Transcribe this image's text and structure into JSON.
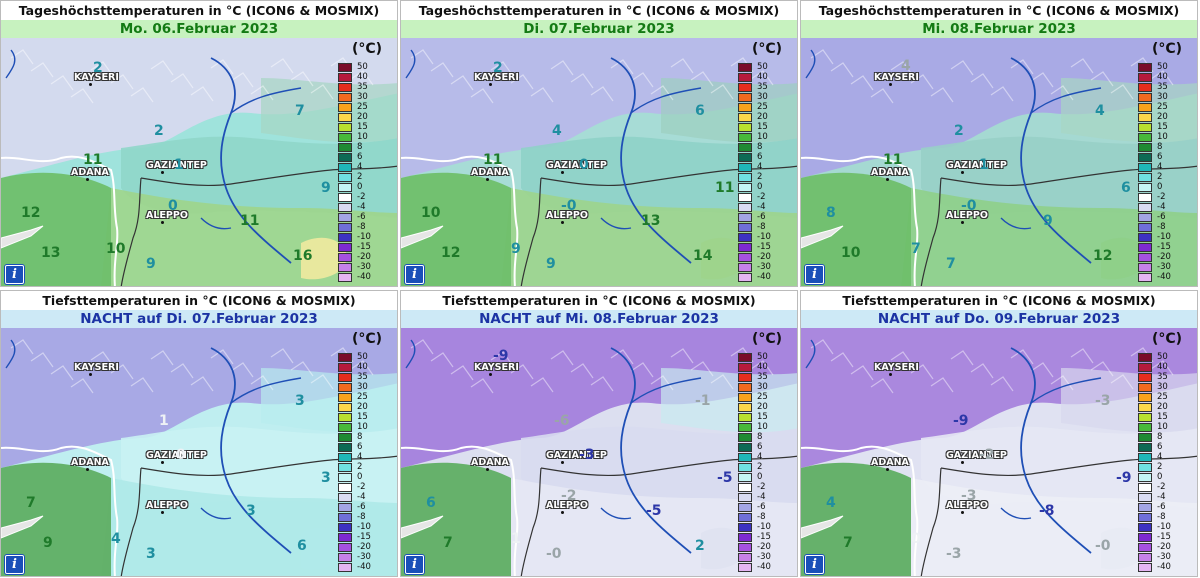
{
  "unit": "(°C)",
  "scale": {
    "labels": [
      "50",
      "40",
      "35",
      "30",
      "25",
      "20",
      "15",
      "10",
      "8",
      "6",
      "4",
      "2",
      "0",
      "-2",
      "-4",
      "-6",
      "-8",
      "-10",
      "-15",
      "-20",
      "-30",
      "-40"
    ],
    "colors": [
      "#7a0b2a",
      "#b51a3c",
      "#e62d1d",
      "#f26a1f",
      "#f9a21c",
      "#fbd74a",
      "#b9e02f",
      "#47b93a",
      "#1f8a33",
      "#0d6a55",
      "#1fb6b8",
      "#6fe0e2",
      "#c4f5f5",
      "#ffffff",
      "#d9dbf2",
      "#a3a5e4",
      "#6f6fd9",
      "#3d32c2",
      "#7d2ad1",
      "#a551df",
      "#c681e8",
      "#e4b5f2"
    ]
  },
  "cities": {
    "kayseri": "KAYSERI",
    "adana": "ADANA",
    "gaziantep": "GAZIANTEP",
    "aleppo": "ALEPPO"
  },
  "info_label": "i",
  "panels": [
    {
      "title": "Tageshöchsttemperaturen in °C (ICON6 & MOSMIX)",
      "date": "Mo. 06.Februar 2023",
      "kind": "day",
      "values": [
        {
          "t": "2",
          "c": "cy",
          "x": 92,
          "y": 30
        },
        {
          "t": "2",
          "c": "cy",
          "x": 153,
          "y": 93
        },
        {
          "t": "7",
          "c": "cy",
          "x": 294,
          "y": 73
        },
        {
          "t": "11",
          "c": "dg",
          "x": 82,
          "y": 122
        },
        {
          "t": "1",
          "c": "cy",
          "x": 173,
          "y": 127
        },
        {
          "t": "9",
          "c": "cy",
          "x": 320,
          "y": 150
        },
        {
          "t": "12",
          "c": "dg",
          "x": 20,
          "y": 175
        },
        {
          "t": "0",
          "c": "cy",
          "x": 167,
          "y": 168
        },
        {
          "t": "11",
          "c": "dg",
          "x": 239,
          "y": 183
        },
        {
          "t": "13",
          "c": "dg",
          "x": 40,
          "y": 215
        },
        {
          "t": "10",
          "c": "dg",
          "x": 105,
          "y": 211
        },
        {
          "t": "9",
          "c": "cy",
          "x": 145,
          "y": 226
        },
        {
          "t": "16",
          "c": "dg",
          "x": 292,
          "y": 218
        }
      ]
    },
    {
      "title": "Tageshöchsttemperaturen in °C (ICON6 & MOSMIX)",
      "date": "Di. 07.Februar 2023",
      "kind": "day",
      "values": [
        {
          "t": "2",
          "c": "cy",
          "x": 92,
          "y": 30
        },
        {
          "t": "4",
          "c": "cy",
          "x": 151,
          "y": 93
        },
        {
          "t": "6",
          "c": "cy",
          "x": 294,
          "y": 73
        },
        {
          "t": "11",
          "c": "dg",
          "x": 82,
          "y": 122
        },
        {
          "t": "0",
          "c": "cy",
          "x": 178,
          "y": 127
        },
        {
          "t": "11",
          "c": "dg",
          "x": 314,
          "y": 150
        },
        {
          "t": "10",
          "c": "dg",
          "x": 20,
          "y": 175
        },
        {
          "t": "-0",
          "c": "cy",
          "x": 160,
          "y": 168
        },
        {
          "t": "13",
          "c": "dg",
          "x": 240,
          "y": 183
        },
        {
          "t": "12",
          "c": "dg",
          "x": 40,
          "y": 215
        },
        {
          "t": "9",
          "c": "cy",
          "x": 110,
          "y": 211
        },
        {
          "t": "9",
          "c": "cy",
          "x": 145,
          "y": 226
        },
        {
          "t": "14",
          "c": "dg",
          "x": 292,
          "y": 218
        }
      ]
    },
    {
      "title": "Tageshöchsttemperaturen in °C (ICON6 & MOSMIX)",
      "date": "Mi. 08.Februar 2023",
      "kind": "day",
      "values": [
        {
          "t": "4",
          "c": "gr",
          "x": 100,
          "y": 28
        },
        {
          "t": "2",
          "c": "cy",
          "x": 153,
          "y": 93
        },
        {
          "t": "4",
          "c": "cy",
          "x": 294,
          "y": 73
        },
        {
          "t": "11",
          "c": "dg",
          "x": 82,
          "y": 122
        },
        {
          "t": "1",
          "c": "cy",
          "x": 178,
          "y": 127
        },
        {
          "t": "6",
          "c": "cy",
          "x": 320,
          "y": 150
        },
        {
          "t": "8",
          "c": "cy",
          "x": 25,
          "y": 175
        },
        {
          "t": "-0",
          "c": "cy",
          "x": 160,
          "y": 168
        },
        {
          "t": "9",
          "c": "cy",
          "x": 242,
          "y": 183
        },
        {
          "t": "10",
          "c": "dg",
          "x": 40,
          "y": 215
        },
        {
          "t": "7",
          "c": "cy",
          "x": 110,
          "y": 211
        },
        {
          "t": "7",
          "c": "cy",
          "x": 145,
          "y": 226
        },
        {
          "t": "12",
          "c": "dg",
          "x": 292,
          "y": 218
        }
      ]
    },
    {
      "title": "Tiefsttemperaturen in °C (ICON6 & MOSMIX)",
      "date": "NACHT auf Di. 07.Februar 2023",
      "kind": "night",
      "values": [
        {
          "t": "3",
          "c": "cy",
          "x": 294,
          "y": 73
        },
        {
          "t": "1",
          "c": "bw",
          "x": 158,
          "y": 93
        },
        {
          "t": "0",
          "c": "bw",
          "x": 175,
          "y": 127
        },
        {
          "t": "3",
          "c": "cy",
          "x": 320,
          "y": 150
        },
        {
          "t": "7",
          "c": "dg",
          "x": 25,
          "y": 175
        },
        {
          "t": "3",
          "c": "cy",
          "x": 245,
          "y": 183
        },
        {
          "t": "9",
          "c": "dg",
          "x": 42,
          "y": 215
        },
        {
          "t": "4",
          "c": "cy",
          "x": 110,
          "y": 211
        },
        {
          "t": "3",
          "c": "cy",
          "x": 145,
          "y": 226
        },
        {
          "t": "6",
          "c": "cy",
          "x": 296,
          "y": 218
        }
      ]
    },
    {
      "title": "Tiefsttemperaturen in °C (ICON6 & MOSMIX)",
      "date": "NACHT auf Mi. 08.Februar 2023",
      "kind": "night",
      "values": [
        {
          "t": "-9",
          "c": "bl",
          "x": 92,
          "y": 28
        },
        {
          "t": "-1",
          "c": "gr",
          "x": 294,
          "y": 73
        },
        {
          "t": "-6",
          "c": "gr",
          "x": 153,
          "y": 93
        },
        {
          "t": "-3",
          "c": "bl",
          "x": 178,
          "y": 127
        },
        {
          "t": "-5",
          "c": "bl",
          "x": 316,
          "y": 150
        },
        {
          "t": "6",
          "c": "cy",
          "x": 25,
          "y": 175
        },
        {
          "t": "-2",
          "c": "gr",
          "x": 160,
          "y": 168
        },
        {
          "t": "-5",
          "c": "bl",
          "x": 245,
          "y": 183
        },
        {
          "t": "7",
          "c": "dg",
          "x": 42,
          "y": 215
        },
        {
          "t": "1",
          "c": "bw",
          "x": 110,
          "y": 211
        },
        {
          "t": "-0",
          "c": "gr",
          "x": 145,
          "y": 226
        },
        {
          "t": "2",
          "c": "cy",
          "x": 294,
          "y": 218
        }
      ]
    },
    {
      "title": "Tiefsttemperaturen in °C (ICON6 & MOSMIX)",
      "date": "NACHT auf Do. 09.Februar 2023",
      "kind": "night",
      "values": [
        {
          "t": "-3",
          "c": "gr",
          "x": 294,
          "y": 73
        },
        {
          "t": "-9",
          "c": "bl",
          "x": 152,
          "y": 93
        },
        {
          "t": "-2",
          "c": "gr",
          "x": 178,
          "y": 127
        },
        {
          "t": "-9",
          "c": "bl",
          "x": 315,
          "y": 150
        },
        {
          "t": "4",
          "c": "cy",
          "x": 25,
          "y": 175
        },
        {
          "t": "-3",
          "c": "gr",
          "x": 160,
          "y": 168
        },
        {
          "t": "-8",
          "c": "bl",
          "x": 238,
          "y": 183
        },
        {
          "t": "7",
          "c": "dg",
          "x": 42,
          "y": 215
        },
        {
          "t": "0",
          "c": "bw",
          "x": 110,
          "y": 211
        },
        {
          "t": "-3",
          "c": "gr",
          "x": 145,
          "y": 226
        },
        {
          "t": "-0",
          "c": "gr",
          "x": 294,
          "y": 218
        }
      ]
    }
  ]
}
